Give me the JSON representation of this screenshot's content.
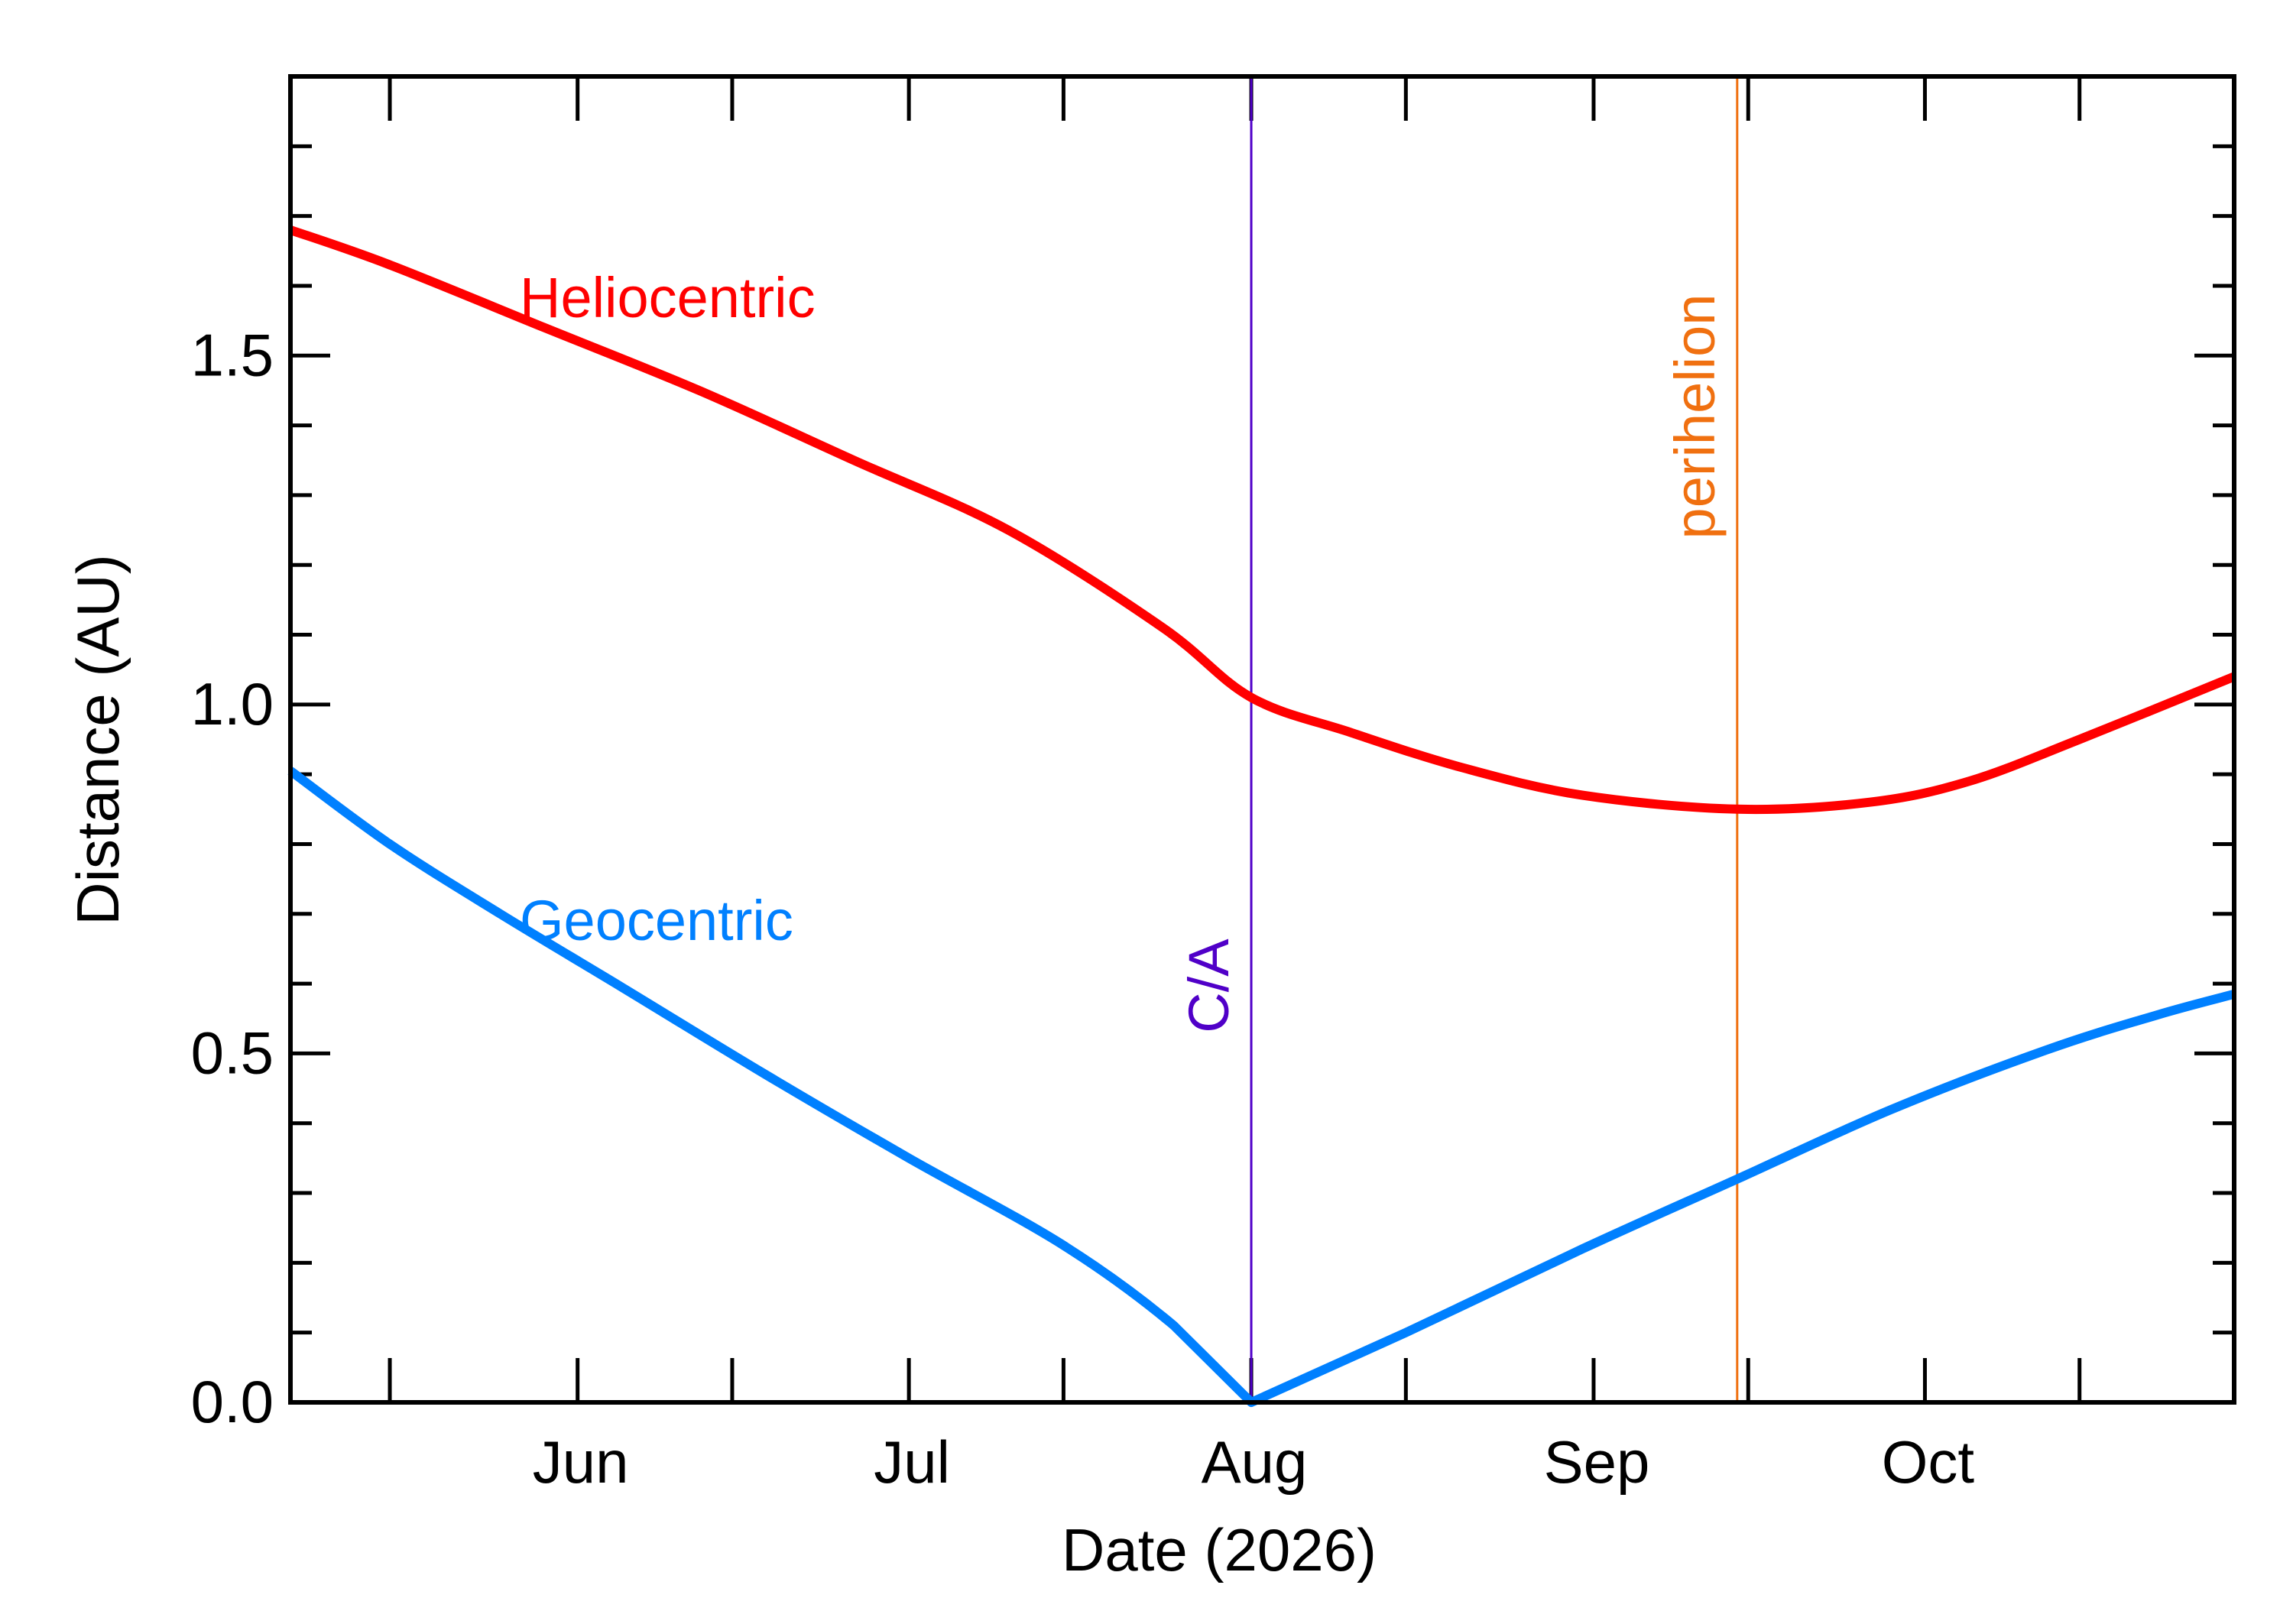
{
  "chart_data": {
    "type": "line",
    "xlabel": "Date (2026)",
    "ylabel": "Distance (AU)",
    "xlim": [
      "2026-05-06",
      "2026-10-29"
    ],
    "ylim": [
      0.0,
      1.9
    ],
    "x_ticks": [
      {
        "date": "2026-06-01",
        "label": "Jun"
      },
      {
        "date": "2026-07-01",
        "label": "Jul"
      },
      {
        "date": "2026-08-01",
        "label": "Aug"
      },
      {
        "date": "2026-09-01",
        "label": "Sep"
      },
      {
        "date": "2026-10-01",
        "label": "Oct"
      }
    ],
    "y_ticks": [
      {
        "value": 0.0,
        "label": "0.0"
      },
      {
        "value": 0.5,
        "label": "0.5"
      },
      {
        "value": 1.0,
        "label": "1.0"
      },
      {
        "value": 1.5,
        "label": "1.5"
      }
    ],
    "y_minor_step": 0.1,
    "grid": false,
    "series": [
      {
        "name": "Heliocentric",
        "color": "#ff0000",
        "points": [
          [
            "2026-05-06",
            1.68
          ],
          [
            "2026-05-15",
            1.63
          ],
          [
            "2026-05-29",
            1.54
          ],
          [
            "2026-06-12",
            1.45
          ],
          [
            "2026-06-26",
            1.35
          ],
          [
            "2026-07-10",
            1.25
          ],
          [
            "2026-07-24",
            1.11
          ],
          [
            "2026-08-01",
            1.01
          ],
          [
            "2026-08-10",
            0.96
          ],
          [
            "2026-08-20",
            0.91
          ],
          [
            "2026-08-31",
            0.87
          ],
          [
            "2026-09-14",
            0.85
          ],
          [
            "2026-09-26",
            0.86
          ],
          [
            "2026-10-05",
            0.89
          ],
          [
            "2026-10-15",
            0.95
          ],
          [
            "2026-10-29",
            1.04
          ]
        ]
      },
      {
        "name": "Geocentric",
        "color": "#0080ff",
        "points": [
          [
            "2026-05-06",
            0.905
          ],
          [
            "2026-05-15",
            0.8
          ],
          [
            "2026-05-25",
            0.7
          ],
          [
            "2026-06-05",
            0.595
          ],
          [
            "2026-06-18",
            0.47
          ],
          [
            "2026-07-01",
            0.35
          ],
          [
            "2026-07-15",
            0.225
          ],
          [
            "2026-07-25",
            0.11
          ],
          [
            "2026-08-01",
            0.0
          ],
          [
            "2026-08-15",
            0.1
          ],
          [
            "2026-08-31",
            0.22
          ],
          [
            "2026-09-14",
            0.32
          ],
          [
            "2026-09-28",
            0.42
          ],
          [
            "2026-10-12",
            0.505
          ],
          [
            "2026-10-22",
            0.555
          ],
          [
            "2026-10-29",
            0.585
          ]
        ]
      }
    ],
    "vlines": [
      {
        "label": "C/A",
        "date": "2026-08-01",
        "color": "#5000c8"
      },
      {
        "label": "perihelion",
        "date": "2026-09-14",
        "color": "#f07010"
      }
    ]
  }
}
